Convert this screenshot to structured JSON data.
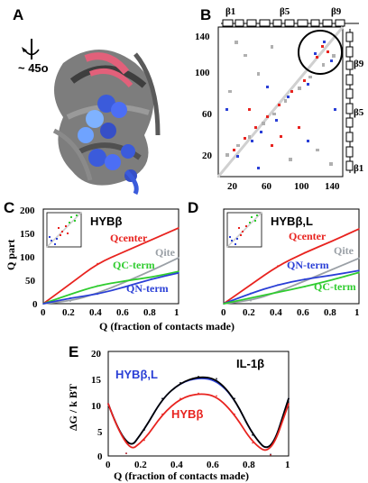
{
  "panels": {
    "A": {
      "label": "A",
      "rotation": "~ 45o"
    },
    "B": {
      "label": "B",
      "top_strands": [
        "β1",
        "β5",
        "β9"
      ],
      "side_strands": [
        "β9",
        "β5",
        "β1"
      ],
      "x_ticks": [
        "20",
        "60",
        "100",
        "140"
      ],
      "y_ticks": [
        "140",
        "100",
        "60",
        "20"
      ]
    },
    "C": {
      "label": "C",
      "title": "HYBβ",
      "ylabel": "Q part",
      "y_ticks": [
        "200",
        "150",
        "100",
        "50",
        "0"
      ],
      "x_ticks": [
        "0",
        "0.2",
        "0.4",
        "0.6",
        "0.8",
        "1"
      ],
      "curves": [
        "Qcenter",
        "Qite",
        "QC-term",
        "QN-term"
      ]
    },
    "D": {
      "label": "D",
      "title": "HYBβ,L",
      "x_ticks": [
        "0",
        "0.2",
        "0.4",
        "0.6",
        "0.8",
        "1"
      ],
      "curves": [
        "Qcenter",
        "Qite",
        "QN-term",
        "QC-term"
      ]
    },
    "CD_xlabel": "Q (fraction of contacts made)",
    "E": {
      "label": "E",
      "ylabel": "ΔG / k BT",
      "xlabel": "Q (fraction of contacts made)",
      "y_ticks": [
        "20",
        "15",
        "10",
        "5",
        "0"
      ],
      "x_ticks": [
        "0",
        "0.2",
        "0.4",
        "0.6",
        "0.8",
        "1"
      ],
      "series": [
        "HYBβ,L",
        "IL-1β",
        "HYBβ"
      ]
    }
  },
  "chart_data": [
    {
      "type": "line",
      "title": "HYBβ",
      "xlabel": "Q (fraction of contacts made)",
      "ylabel": "Q part",
      "xlim": [
        0,
        1
      ],
      "ylim": [
        0,
        200
      ],
      "x": [
        0,
        0.2,
        0.4,
        0.6,
        0.8,
        1.0
      ],
      "series": [
        {
          "name": "Qcenter",
          "color": "#e8231f",
          "values": [
            0,
            42,
            85,
            110,
            135,
            160
          ]
        },
        {
          "name": "Qite",
          "color": "#9aa0a6",
          "values": [
            0,
            5,
            22,
            45,
            70,
            97
          ]
        },
        {
          "name": "QC-term",
          "color": "#2fcc2f",
          "values": [
            0,
            20,
            38,
            48,
            56,
            68
          ]
        },
        {
          "name": "QN-term",
          "color": "#2a3fd6",
          "values": [
            0,
            12,
            20,
            35,
            52,
            65
          ]
        }
      ]
    },
    {
      "type": "line",
      "title": "HYBβ,L",
      "xlabel": "Q (fraction of contacts made)",
      "xlim": [
        0,
        1
      ],
      "ylim": [
        0,
        200
      ],
      "x": [
        0,
        0.2,
        0.4,
        0.6,
        0.8,
        1.0
      ],
      "series": [
        {
          "name": "Qcenter",
          "color": "#e8231f",
          "values": [
            0,
            40,
            80,
            108,
            132,
            158
          ]
        },
        {
          "name": "Qite",
          "color": "#9aa0a6",
          "values": [
            0,
            6,
            25,
            48,
            72,
            96
          ]
        },
        {
          "name": "QN-term",
          "color": "#2a3fd6",
          "values": [
            0,
            22,
            40,
            52,
            60,
            70
          ]
        },
        {
          "name": "QC-term",
          "color": "#2fcc2f",
          "values": [
            0,
            12,
            24,
            36,
            50,
            66
          ]
        }
      ]
    },
    {
      "type": "line",
      "xlabel": "Q (fraction of contacts made)",
      "ylabel": "ΔG / k BT",
      "xlim": [
        0,
        1
      ],
      "ylim": [
        0,
        20
      ],
      "x": [
        0,
        0.1,
        0.2,
        0.3,
        0.4,
        0.5,
        0.6,
        0.7,
        0.8,
        0.9,
        1.0
      ],
      "series": [
        {
          "name": "HYBβ,L",
          "color": "#2a3fd6",
          "values": [
            10,
            0.5,
            5,
            11,
            14,
            15,
            14.5,
            11,
            4,
            0.3,
            11
          ]
        },
        {
          "name": "IL-1β",
          "color": "#000000",
          "values": [
            10,
            0.5,
            5,
            11,
            14,
            15.2,
            14.8,
            11,
            4,
            0.3,
            11
          ]
        },
        {
          "name": "HYBβ",
          "color": "#e8231f",
          "values": [
            10,
            0.5,
            3,
            8,
            11,
            12,
            11.5,
            8,
            2.5,
            0.2,
            10
          ]
        }
      ]
    }
  ]
}
